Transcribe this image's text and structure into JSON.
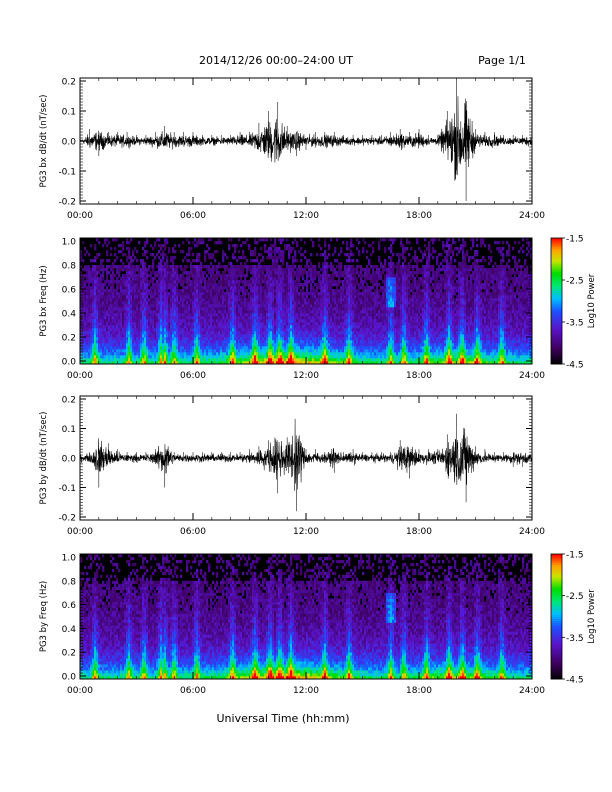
{
  "header": {
    "title": "2014/12/26  00:00–24:00 UT",
    "page": "Page 1/1"
  },
  "footer": {
    "xlabel": "Universal Time (hh:mm)"
  },
  "chart_data": [
    {
      "type": "line",
      "ylabel": "PG3 bx dB/dt (nT/sec)",
      "xlim": [
        0,
        24
      ],
      "ylim": [
        -0.2,
        0.2
      ],
      "x_ticks": [
        "00:00",
        "06:00",
        "12:00",
        "18:00",
        "24:00"
      ],
      "y_ticks": [
        "0.2",
        "0.1",
        "0.0",
        "-0.1",
        "-0.2"
      ],
      "series": [
        {
          "x": [
            0,
            0.5,
            1,
            1.5,
            2,
            2.5,
            3,
            3.5,
            4,
            4.5,
            5,
            5.5,
            6,
            6.5,
            7,
            7.5,
            8,
            8.5,
            9,
            9.5,
            10,
            10.5,
            11,
            11.5,
            12,
            12.5,
            13,
            13.5,
            14,
            14.5,
            15,
            15.5,
            16,
            16.5,
            17,
            17.5,
            18,
            18.5,
            19,
            19.5,
            20,
            20.5,
            21,
            21.5,
            22,
            22.5,
            23,
            23.5,
            24
          ],
          "y": [
            0.0,
            0.04,
            -0.05,
            0.03,
            0.03,
            0.03,
            0.02,
            0.02,
            0.03,
            0.05,
            0.03,
            0.03,
            0.03,
            0.02,
            0.02,
            0.02,
            0.02,
            0.03,
            0.03,
            0.06,
            0.1,
            0.13,
            0.05,
            -0.05,
            -0.03,
            0.03,
            0.03,
            0.03,
            0.02,
            0.02,
            0.02,
            0.02,
            0.02,
            0.03,
            0.04,
            0.03,
            0.04,
            0.02,
            0.02,
            0.1,
            0.2,
            -0.2,
            0.04,
            0.03,
            0.03,
            0.02,
            0.02,
            0.02,
            0.03
          ]
        }
      ]
    },
    {
      "type": "heatmap",
      "ylabel": "PG3 bx Freq (Hz)",
      "xlim": [
        0,
        24
      ],
      "ylim": [
        0.0,
        1.0
      ],
      "x_ticks": [
        "00:00",
        "06:00",
        "12:00",
        "18:00",
        "24:00"
      ],
      "y_ticks": [
        "1.0",
        "0.8",
        "0.6",
        "0.4",
        "0.2",
        "0.0"
      ],
      "colorbar": {
        "label": "Log10 Power",
        "ticks": [
          "-1.5",
          "-2.5",
          "-3.5",
          "-4.5"
        ],
        "range": [
          -4.5,
          -1.5
        ]
      },
      "bursts_hours": [
        0.8,
        2.6,
        3.4,
        4.3,
        4.5,
        5.0,
        6.2,
        8.1,
        9.3,
        10.1,
        10.6,
        11.2,
        13.0,
        14.3,
        16.5,
        17.2,
        18.4,
        19.6,
        20.3,
        21.1,
        22.4
      ]
    },
    {
      "type": "line",
      "ylabel": "PG3 by dB/dt (nT/sec)",
      "xlim": [
        0,
        24
      ],
      "ylim": [
        -0.2,
        0.2
      ],
      "x_ticks": [
        "00:00",
        "06:00",
        "12:00",
        "18:00",
        "24:00"
      ],
      "y_ticks": [
        "0.2",
        "0.1",
        "0.0",
        "-0.1",
        "-0.2"
      ],
      "series": [
        {
          "x": [
            0,
            0.5,
            1,
            1.5,
            2,
            2.5,
            3,
            3.5,
            4,
            4.5,
            5,
            5.5,
            6,
            6.5,
            7,
            7.5,
            8,
            8.5,
            9,
            9.5,
            10,
            10.5,
            11,
            11.5,
            12,
            12.5,
            13,
            13.5,
            14,
            14.5,
            15,
            15.5,
            16,
            16.5,
            17,
            17.5,
            18,
            18.5,
            19,
            19.5,
            20,
            20.5,
            21,
            21.5,
            22,
            22.5,
            23,
            23.5,
            24
          ],
          "y": [
            -0.02,
            0.02,
            -0.1,
            0.05,
            0.03,
            0.02,
            0.02,
            0.02,
            0.03,
            -0.1,
            0.02,
            0.02,
            0.02,
            0.02,
            0.02,
            0.02,
            0.02,
            0.02,
            0.03,
            0.04,
            0.06,
            -0.12,
            0.07,
            -0.18,
            0.03,
            0.03,
            0.02,
            -0.05,
            0.02,
            0.03,
            0.02,
            0.02,
            0.02,
            0.02,
            0.06,
            -0.07,
            0.03,
            0.03,
            0.03,
            0.08,
            0.15,
            -0.15,
            0.04,
            0.03,
            0.02,
            0.02,
            -0.03,
            -0.03,
            -0.03
          ]
        }
      ]
    },
    {
      "type": "heatmap",
      "ylabel": "PG3 by Freq (Hz)",
      "xlim": [
        0,
        24
      ],
      "ylim": [
        0.0,
        1.0
      ],
      "x_ticks": [
        "00:00",
        "06:00",
        "12:00",
        "18:00",
        "24:00"
      ],
      "y_ticks": [
        "1.0",
        "0.8",
        "0.6",
        "0.4",
        "0.2",
        "0.0"
      ],
      "colorbar": {
        "label": "Log10 Power",
        "ticks": [
          "-1.5",
          "-2.5",
          "-3.5",
          "-4.5"
        ],
        "range": [
          -4.5,
          -1.5
        ]
      },
      "bursts_hours": [
        0.8,
        2.6,
        3.4,
        4.3,
        4.5,
        5.0,
        6.2,
        8.1,
        9.3,
        10.1,
        10.6,
        11.2,
        13.0,
        14.3,
        16.5,
        17.2,
        18.4,
        19.6,
        20.3,
        21.1,
        22.4
      ]
    }
  ]
}
